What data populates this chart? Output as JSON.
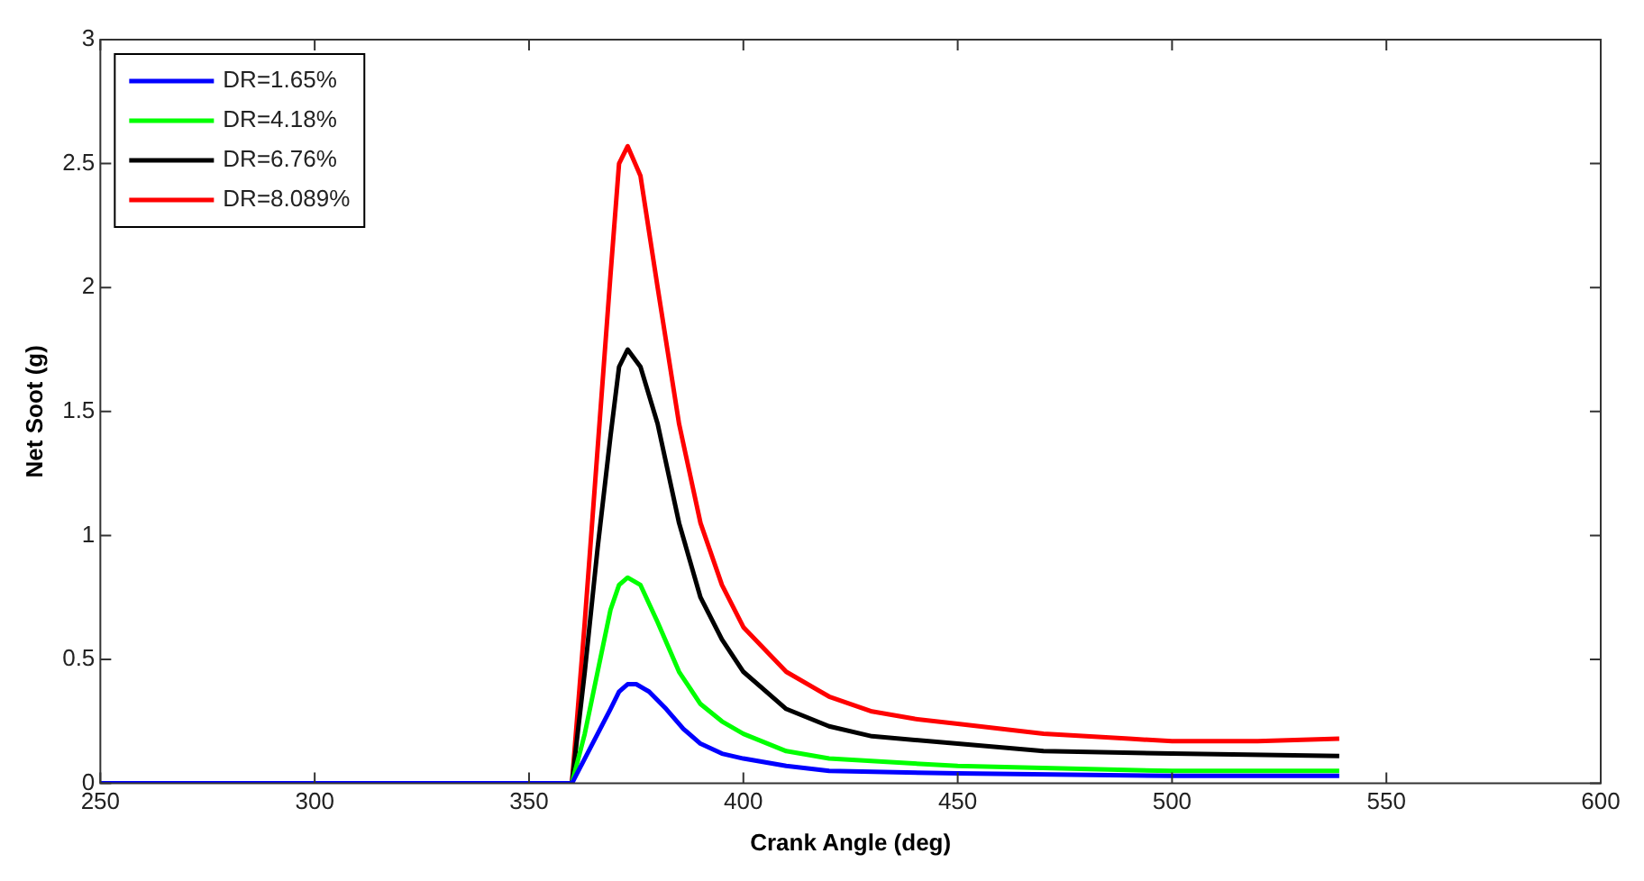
{
  "chart_data": {
    "type": "line",
    "xlabel": "Crank Angle (deg)",
    "ylabel": "Net Soot (g)",
    "xlim": [
      250,
      600
    ],
    "xticks": [
      250,
      300,
      350,
      400,
      450,
      500,
      550,
      600
    ],
    "ylim": [
      0,
      3
    ],
    "yticks": [
      0,
      0.5,
      1,
      1.5,
      2,
      2.5,
      3
    ],
    "grid": false,
    "legend": "top left",
    "marker": "none",
    "line_style": "solid",
    "series": [
      {
        "name": "DR=1.65%",
        "color": "#0000ff",
        "x": [
          250,
          360,
          363,
          366,
          369,
          371,
          373,
          375,
          378,
          382,
          386,
          390,
          395,
          400,
          410,
          420,
          450,
          500,
          539
        ],
        "values": [
          0,
          0,
          0.1,
          0.2,
          0.3,
          0.37,
          0.4,
          0.4,
          0.37,
          0.3,
          0.22,
          0.16,
          0.12,
          0.1,
          0.07,
          0.05,
          0.04,
          0.03,
          0.03
        ]
      },
      {
        "name": "DR=4.18%",
        "color": "#00ff00",
        "x": [
          250,
          360,
          363,
          366,
          369,
          371,
          373,
          376,
          380,
          385,
          390,
          395,
          400,
          410,
          420,
          450,
          500,
          539
        ],
        "values": [
          0,
          0,
          0.2,
          0.45,
          0.7,
          0.8,
          0.83,
          0.8,
          0.65,
          0.45,
          0.32,
          0.25,
          0.2,
          0.13,
          0.1,
          0.07,
          0.05,
          0.05
        ]
      },
      {
        "name": "DR=6.76%",
        "color": "#000000",
        "x": [
          250,
          360,
          363,
          366,
          369,
          371,
          373,
          376,
          380,
          385,
          390,
          395,
          400,
          410,
          420,
          430,
          450,
          470,
          500,
          539
        ],
        "values": [
          0,
          0,
          0.45,
          0.95,
          1.4,
          1.68,
          1.75,
          1.68,
          1.45,
          1.05,
          0.75,
          0.58,
          0.45,
          0.3,
          0.23,
          0.19,
          0.16,
          0.13,
          0.12,
          0.11
        ]
      },
      {
        "name": "DR=8.089%",
        "color": "#ff0000",
        "x": [
          250,
          360,
          363,
          366,
          369,
          371,
          373,
          376,
          380,
          385,
          390,
          395,
          400,
          410,
          420,
          430,
          440,
          450,
          460,
          470,
          480,
          490,
          500,
          520,
          539
        ],
        "values": [
          0,
          0,
          0.65,
          1.35,
          2.05,
          2.5,
          2.57,
          2.45,
          2.0,
          1.45,
          1.05,
          0.8,
          0.63,
          0.45,
          0.35,
          0.29,
          0.26,
          0.24,
          0.22,
          0.2,
          0.19,
          0.18,
          0.17,
          0.17,
          0.18
        ]
      }
    ]
  }
}
